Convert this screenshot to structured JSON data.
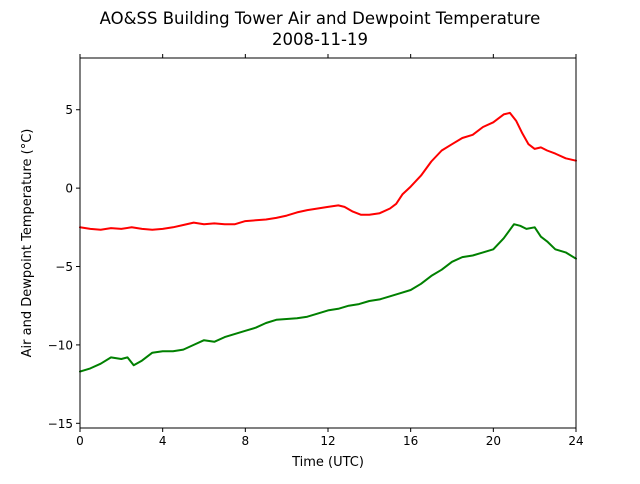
{
  "chart_data": {
    "type": "line",
    "title": "AO&SS Building Tower Air and Dewpoint Temperature",
    "subtitle": "2008-11-19",
    "xlabel": "Time (UTC)",
    "ylabel": "Air and Dewpoint Temperature (°C)",
    "xlim": [
      0,
      24
    ],
    "ylim": [
      -15.3,
      8.3
    ],
    "xticks": [
      0,
      4,
      8,
      12,
      16,
      20,
      24
    ],
    "yticks": [
      -15,
      -10,
      -5,
      0,
      5
    ],
    "grid": false,
    "legend": "none",
    "series": [
      {
        "color": "#ff0000",
        "x": [
          0,
          0.5,
          1,
          1.5,
          2,
          2.5,
          3,
          3.5,
          4,
          4.5,
          5,
          5.5,
          6,
          6.5,
          7,
          7.5,
          8,
          8.5,
          9,
          9.5,
          10,
          10.5,
          11,
          11.5,
          12,
          12.5,
          12.8,
          13.2,
          13.6,
          14,
          14.5,
          15,
          15.3,
          15.6,
          16,
          16.5,
          17,
          17.5,
          18,
          18.5,
          19,
          19.5,
          20,
          20.5,
          20.8,
          21.1,
          21.4,
          21.7,
          22,
          22.3,
          22.6,
          23,
          23.5,
          24
        ],
        "y": [
          -2.5,
          -2.6,
          -2.65,
          -2.55,
          -2.6,
          -2.5,
          -2.6,
          -2.65,
          -2.6,
          -2.5,
          -2.35,
          -2.2,
          -2.3,
          -2.25,
          -2.3,
          -2.3,
          -2.1,
          -2.05,
          -2.0,
          -1.9,
          -1.75,
          -1.55,
          -1.4,
          -1.3,
          -1.2,
          -1.1,
          -1.2,
          -1.5,
          -1.7,
          -1.7,
          -1.6,
          -1.3,
          -1.0,
          -0.4,
          0.1,
          0.8,
          1.7,
          2.4,
          2.8,
          3.2,
          3.4,
          3.9,
          4.2,
          4.7,
          4.8,
          4.3,
          3.5,
          2.8,
          2.5,
          2.6,
          2.4,
          2.2,
          1.9,
          1.75
        ]
      },
      {
        "color": "#008000",
        "x": [
          0,
          0.5,
          1,
          1.5,
          2,
          2.3,
          2.6,
          3,
          3.5,
          4,
          4.5,
          5,
          5.5,
          6,
          6.5,
          7,
          7.5,
          8,
          8.5,
          9,
          9.5,
          10,
          10.5,
          11,
          11.5,
          12,
          12.5,
          13,
          13.5,
          14,
          14.5,
          15,
          15.5,
          16,
          16.5,
          17,
          17.5,
          18,
          18.5,
          19,
          19.5,
          20,
          20.5,
          21,
          21.3,
          21.6,
          22,
          22.3,
          22.6,
          23,
          23.5,
          24
        ],
        "y": [
          -11.7,
          -11.5,
          -11.2,
          -10.8,
          -10.9,
          -10.8,
          -11.3,
          -11.0,
          -10.5,
          -10.4,
          -10.4,
          -10.3,
          -10.0,
          -9.7,
          -9.8,
          -9.5,
          -9.3,
          -9.1,
          -8.9,
          -8.6,
          -8.4,
          -8.35,
          -8.3,
          -8.2,
          -8.0,
          -7.8,
          -7.7,
          -7.5,
          -7.4,
          -7.2,
          -7.1,
          -6.9,
          -6.7,
          -6.5,
          -6.1,
          -5.6,
          -5.2,
          -4.7,
          -4.4,
          -4.3,
          -4.1,
          -3.9,
          -3.2,
          -2.3,
          -2.4,
          -2.6,
          -2.5,
          -3.1,
          -3.4,
          -3.9,
          -4.1,
          -4.5
        ]
      }
    ]
  }
}
